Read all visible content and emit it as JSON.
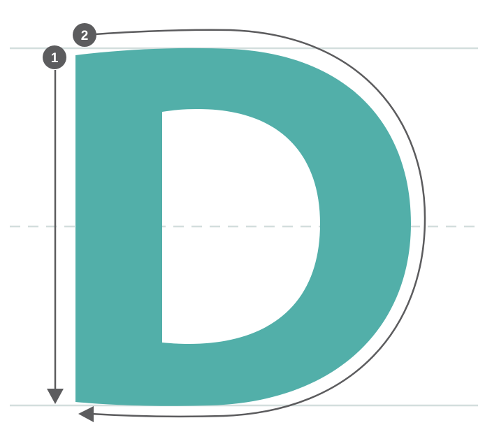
{
  "letter": "D",
  "steps": [
    {
      "number": "1",
      "direction": "down",
      "description": ""
    },
    {
      "number": "2",
      "direction": "curve-clockwise",
      "description": ""
    }
  ],
  "colors": {
    "letter_fill": "#52afa9",
    "guide_line": "#d3dedd",
    "stroke_arrow": "#5c5c5e",
    "badge": "#5c5c5e",
    "background": "#ffffff"
  },
  "icons": {
    "arrow_head": "triangle-arrowhead-icon",
    "badge": "numbered-circle-icon"
  }
}
